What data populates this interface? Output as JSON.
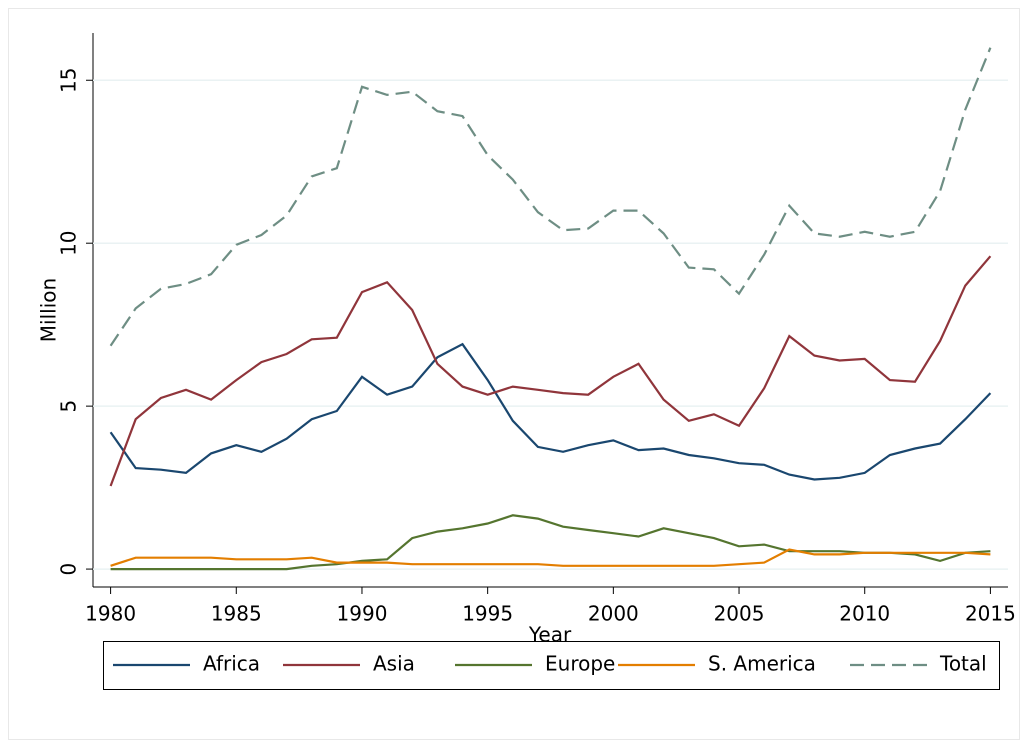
{
  "chart_data": {
    "type": "line",
    "x_label": "Year",
    "y_label": "Million",
    "x": [
      1980,
      1981,
      1982,
      1983,
      1984,
      1985,
      1986,
      1987,
      1988,
      1989,
      1990,
      1991,
      1992,
      1993,
      1994,
      1995,
      1996,
      1997,
      1998,
      1999,
      2000,
      2001,
      2002,
      2003,
      2004,
      2005,
      2006,
      2007,
      2008,
      2009,
      2010,
      2011,
      2012,
      2013,
      2014,
      2015
    ],
    "xlim": [
      1979.3,
      2015.7
    ],
    "xticks": [
      1980,
      1985,
      1990,
      1995,
      2000,
      2005,
      2010,
      2015
    ],
    "ylim": [
      -0.55,
      16.45
    ],
    "yticks": [
      0,
      5,
      10,
      15
    ],
    "grid": true,
    "legend": "bottom",
    "series": [
      {
        "name": "Africa",
        "color": "#1a476f",
        "values": [
          4.2,
          3.1,
          3.05,
          2.95,
          3.55,
          3.8,
          3.6,
          4.0,
          4.6,
          4.85,
          5.9,
          5.35,
          5.6,
          6.5,
          6.9,
          5.8,
          4.55,
          3.75,
          3.6,
          3.8,
          3.95,
          3.65,
          3.7,
          3.5,
          3.4,
          3.25,
          3.2,
          2.9,
          2.75,
          2.8,
          2.95,
          3.5,
          3.7,
          3.85,
          4.6,
          5.4
        ]
      },
      {
        "name": "Asia",
        "color": "#90353b",
        "values": [
          2.55,
          4.6,
          5.25,
          5.5,
          5.2,
          5.8,
          6.35,
          6.6,
          7.05,
          7.1,
          8.5,
          8.8,
          7.95,
          6.3,
          5.6,
          5.35,
          5.6,
          5.5,
          5.4,
          5.35,
          5.9,
          6.3,
          5.2,
          4.55,
          4.75,
          4.4,
          5.55,
          7.15,
          6.55,
          6.4,
          6.45,
          5.8,
          5.75,
          7.0,
          8.7,
          9.6
        ]
      },
      {
        "name": "Europe",
        "color": "#55752f",
        "values": [
          0,
          0,
          0,
          0,
          0,
          0,
          0,
          0,
          0.1,
          0.15,
          0.25,
          0.3,
          0.95,
          1.15,
          1.25,
          1.4,
          1.65,
          1.55,
          1.3,
          1.2,
          1.1,
          1.0,
          1.25,
          1.1,
          0.95,
          0.7,
          0.75,
          0.55,
          0.55,
          0.55,
          0.5,
          0.5,
          0.45,
          0.25,
          0.5,
          0.55
        ]
      },
      {
        "name": "S. America",
        "color": "#e37e00",
        "values": [
          0.1,
          0.35,
          0.35,
          0.35,
          0.35,
          0.3,
          0.3,
          0.3,
          0.35,
          0.2,
          0.2,
          0.2,
          0.15,
          0.15,
          0.15,
          0.15,
          0.15,
          0.15,
          0.1,
          0.1,
          0.1,
          0.1,
          0.1,
          0.1,
          0.1,
          0.15,
          0.2,
          0.6,
          0.45,
          0.45,
          0.5,
          0.5,
          0.5,
          0.5,
          0.5,
          0.45
        ]
      },
      {
        "name": "Total",
        "color": "#6e8e84",
        "dashed": true,
        "values": [
          6.85,
          8.0,
          8.6,
          8.75,
          9.05,
          9.95,
          10.25,
          10.85,
          12.05,
          12.3,
          14.8,
          14.55,
          14.65,
          14.05,
          13.9,
          12.7,
          11.95,
          10.95,
          10.4,
          10.45,
          11.0,
          11.0,
          10.3,
          9.25,
          9.2,
          8.45,
          9.65,
          11.15,
          10.3,
          10.2,
          10.35,
          10.2,
          10.35,
          11.6,
          14.1,
          16.0
        ]
      }
    ]
  }
}
